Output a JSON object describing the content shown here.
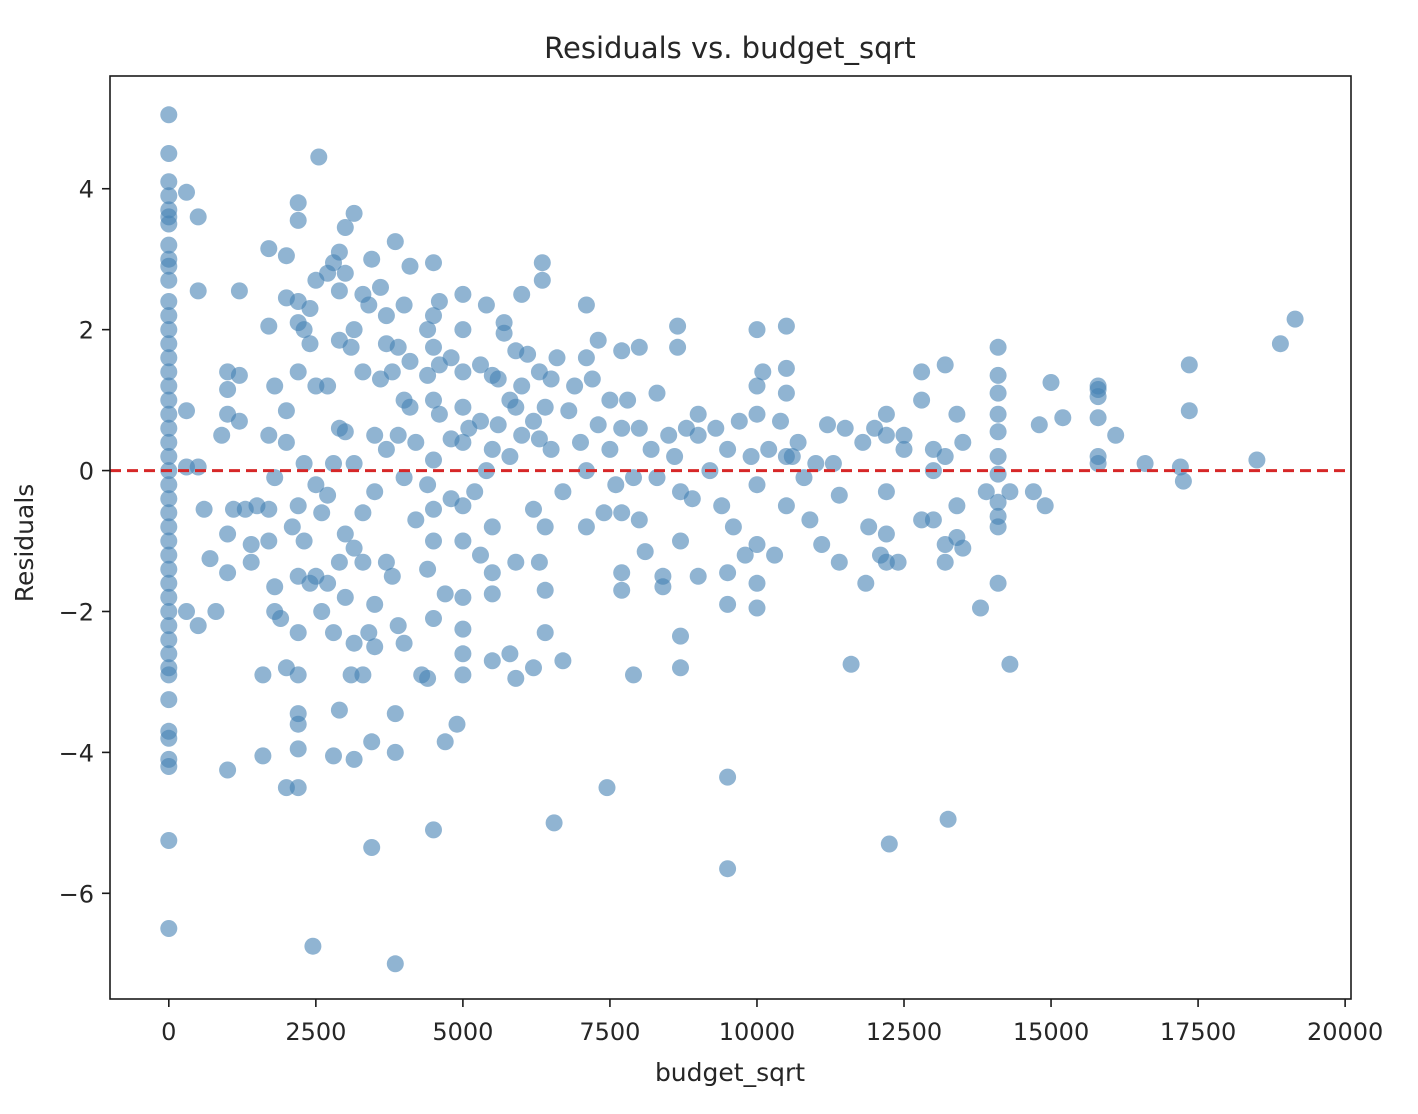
{
  "chart_data": {
    "type": "scatter",
    "title": "Residuals vs. budget_sqrt",
    "xlabel": "budget_sqrt",
    "ylabel": "Residuals",
    "xlim": [
      -1000,
      20100
    ],
    "ylim": [
      -7.5,
      5.6
    ],
    "xticks": [
      0,
      2500,
      5000,
      7500,
      10000,
      12500,
      15000,
      17500,
      20000
    ],
    "xtick_labels": [
      "0",
      "2500",
      "5000",
      "7500",
      "10000",
      "12500",
      "15000",
      "17500",
      "20000"
    ],
    "yticks": [
      4,
      2,
      0,
      -2,
      -4,
      -6
    ],
    "ytick_labels": [
      "4",
      "2",
      "0",
      "−2",
      "−4",
      "−6"
    ],
    "grid": false,
    "point_color": "#4682b4",
    "reference_line": {
      "y": 0,
      "style": "dashed",
      "color": "#d62728"
    },
    "points": [
      [
        0,
        5.05
      ],
      [
        0,
        4.5
      ],
      [
        0,
        4.1
      ],
      [
        0,
        3.9
      ],
      [
        0,
        3.7
      ],
      [
        0,
        3.6
      ],
      [
        0,
        3.5
      ],
      [
        0,
        3.2
      ],
      [
        0,
        3.0
      ],
      [
        0,
        2.9
      ],
      [
        0,
        2.7
      ],
      [
        0,
        2.4
      ],
      [
        0,
        2.2
      ],
      [
        0,
        2.0
      ],
      [
        0,
        1.8
      ],
      [
        0,
        1.6
      ],
      [
        0,
        1.4
      ],
      [
        0,
        1.2
      ],
      [
        0,
        1.0
      ],
      [
        0,
        0.8
      ],
      [
        0,
        0.6
      ],
      [
        0,
        0.4
      ],
      [
        0,
        0.2
      ],
      [
        0,
        0.0
      ],
      [
        0,
        -0.2
      ],
      [
        0,
        -0.4
      ],
      [
        0,
        -0.6
      ],
      [
        0,
        -0.8
      ],
      [
        0,
        -1.0
      ],
      [
        0,
        -1.2
      ],
      [
        0,
        -1.4
      ],
      [
        0,
        -1.6
      ],
      [
        0,
        -1.8
      ],
      [
        0,
        -2.0
      ],
      [
        0,
        -2.2
      ],
      [
        0,
        -2.4
      ],
      [
        0,
        -2.6
      ],
      [
        0,
        -2.8
      ],
      [
        0,
        -2.9
      ],
      [
        0,
        -3.25
      ],
      [
        0,
        -3.7
      ],
      [
        0,
        -3.8
      ],
      [
        0,
        -4.1
      ],
      [
        0,
        -4.2
      ],
      [
        0,
        -5.25
      ],
      [
        0,
        -6.5
      ],
      [
        300,
        3.95
      ],
      [
        500,
        3.6
      ],
      [
        500,
        2.55
      ],
      [
        300,
        0.85
      ],
      [
        300,
        0.05
      ],
      [
        500,
        0.05
      ],
      [
        300,
        -2.0
      ],
      [
        500,
        -2.2
      ],
      [
        800,
        -2.0
      ],
      [
        700,
        -1.25
      ],
      [
        600,
        -0.55
      ],
      [
        900,
        0.5
      ],
      [
        1000,
        1.4
      ],
      [
        1000,
        1.15
      ],
      [
        1000,
        0.8
      ],
      [
        1000,
        -0.9
      ],
      [
        1000,
        -1.45
      ],
      [
        1000,
        -4.25
      ],
      [
        1100,
        -0.55
      ],
      [
        1200,
        2.55
      ],
      [
        1200,
        1.35
      ],
      [
        1200,
        0.7
      ],
      [
        1300,
        -0.55
      ],
      [
        1400,
        -1.05
      ],
      [
        1400,
        -1.3
      ],
      [
        1500,
        -0.5
      ],
      [
        1600,
        -2.9
      ],
      [
        1600,
        -4.05
      ],
      [
        1700,
        3.15
      ],
      [
        1700,
        2.05
      ],
      [
        1700,
        0.5
      ],
      [
        1700,
        -0.55
      ],
      [
        1700,
        -1.0
      ],
      [
        1800,
        -0.1
      ],
      [
        1800,
        1.2
      ],
      [
        1800,
        -1.65
      ],
      [
        1800,
        -2.0
      ],
      [
        1900,
        -2.1
      ],
      [
        2000,
        3.05
      ],
      [
        2000,
        2.45
      ],
      [
        2000,
        0.85
      ],
      [
        2000,
        0.4
      ],
      [
        2000,
        -2.8
      ],
      [
        2000,
        -4.5
      ],
      [
        2100,
        -0.8
      ],
      [
        2200,
        3.8
      ],
      [
        2200,
        3.55
      ],
      [
        2200,
        2.4
      ],
      [
        2200,
        2.1
      ],
      [
        2200,
        1.4
      ],
      [
        2200,
        -0.5
      ],
      [
        2200,
        -1.5
      ],
      [
        2200,
        -2.3
      ],
      [
        2200,
        -2.9
      ],
      [
        2200,
        -3.45
      ],
      [
        2200,
        -3.6
      ],
      [
        2200,
        -3.95
      ],
      [
        2200,
        -4.5
      ],
      [
        2300,
        2.0
      ],
      [
        2300,
        0.1
      ],
      [
        2300,
        -1.0
      ],
      [
        2400,
        2.3
      ],
      [
        2400,
        1.8
      ],
      [
        2400,
        -1.6
      ],
      [
        2450,
        -6.75
      ],
      [
        2500,
        2.7
      ],
      [
        2500,
        1.2
      ],
      [
        2500,
        -0.2
      ],
      [
        2500,
        -1.5
      ],
      [
        2550,
        4.45
      ],
      [
        2600,
        -0.6
      ],
      [
        2600,
        -2.0
      ],
      [
        2700,
        2.8
      ],
      [
        2700,
        1.2
      ],
      [
        2700,
        -0.35
      ],
      [
        2700,
        -1.6
      ],
      [
        2800,
        2.95
      ],
      [
        2800,
        0.1
      ],
      [
        2800,
        -2.3
      ],
      [
        2800,
        -4.05
      ],
      [
        2900,
        3.1
      ],
      [
        2900,
        2.55
      ],
      [
        2900,
        1.85
      ],
      [
        2900,
        0.6
      ],
      [
        2900,
        -1.3
      ],
      [
        2900,
        -3.4
      ],
      [
        3000,
        3.45
      ],
      [
        3000,
        2.8
      ],
      [
        3000,
        0.55
      ],
      [
        3000,
        -0.9
      ],
      [
        3000,
        -1.8
      ],
      [
        3100,
        1.75
      ],
      [
        3100,
        -2.9
      ],
      [
        3150,
        3.65
      ],
      [
        3150,
        2.0
      ],
      [
        3150,
        0.1
      ],
      [
        3150,
        -1.1
      ],
      [
        3150,
        -2.45
      ],
      [
        3150,
        -4.1
      ],
      [
        3300,
        2.5
      ],
      [
        3300,
        1.4
      ],
      [
        3300,
        -0.6
      ],
      [
        3300,
        -1.3
      ],
      [
        3300,
        -2.9
      ],
      [
        3400,
        2.35
      ],
      [
        3400,
        -2.3
      ],
      [
        3450,
        3.0
      ],
      [
        3450,
        -3.85
      ],
      [
        3450,
        -5.35
      ],
      [
        3500,
        0.5
      ],
      [
        3500,
        -0.3
      ],
      [
        3500,
        -1.9
      ],
      [
        3500,
        -2.5
      ],
      [
        3600,
        2.6
      ],
      [
        3600,
        1.3
      ],
      [
        3700,
        2.2
      ],
      [
        3700,
        1.8
      ],
      [
        3700,
        0.3
      ],
      [
        3700,
        -1.3
      ],
      [
        3800,
        1.4
      ],
      [
        3800,
        -1.5
      ],
      [
        3850,
        3.25
      ],
      [
        3850,
        -3.45
      ],
      [
        3850,
        -4.0
      ],
      [
        3850,
        -7.0
      ],
      [
        3900,
        1.75
      ],
      [
        3900,
        0.5
      ],
      [
        3900,
        -2.2
      ],
      [
        4000,
        2.35
      ],
      [
        4000,
        1.0
      ],
      [
        4000,
        -0.1
      ],
      [
        4000,
        -2.45
      ],
      [
        4100,
        2.9
      ],
      [
        4100,
        1.55
      ],
      [
        4100,
        0.9
      ],
      [
        4200,
        0.4
      ],
      [
        4200,
        -0.7
      ],
      [
        4300,
        -2.9
      ],
      [
        4400,
        2.0
      ],
      [
        4400,
        1.35
      ],
      [
        4400,
        -0.2
      ],
      [
        4400,
        -1.4
      ],
      [
        4400,
        -2.95
      ],
      [
        4500,
        2.95
      ],
      [
        4500,
        2.2
      ],
      [
        4500,
        1.75
      ],
      [
        4500,
        1.0
      ],
      [
        4500,
        0.15
      ],
      [
        4500,
        -0.55
      ],
      [
        4500,
        -1.0
      ],
      [
        4500,
        -2.1
      ],
      [
        4500,
        -5.1
      ],
      [
        4600,
        2.4
      ],
      [
        4600,
        1.5
      ],
      [
        4600,
        0.8
      ],
      [
        4700,
        -1.75
      ],
      [
        4700,
        -3.85
      ],
      [
        4800,
        1.6
      ],
      [
        4800,
        0.45
      ],
      [
        4800,
        -0.4
      ],
      [
        4900,
        -3.6
      ],
      [
        5000,
        2.5
      ],
      [
        5000,
        2.0
      ],
      [
        5000,
        1.4
      ],
      [
        5000,
        0.9
      ],
      [
        5000,
        0.4
      ],
      [
        5000,
        -0.5
      ],
      [
        5000,
        -1.0
      ],
      [
        5000,
        -1.8
      ],
      [
        5000,
        -2.25
      ],
      [
        5000,
        -2.6
      ],
      [
        5000,
        -2.9
      ],
      [
        5100,
        0.6
      ],
      [
        5200,
        -0.3
      ],
      [
        5300,
        1.5
      ],
      [
        5300,
        0.7
      ],
      [
        5300,
        -1.2
      ],
      [
        5400,
        2.35
      ],
      [
        5400,
        0.0
      ],
      [
        5500,
        1.35
      ],
      [
        5500,
        0.3
      ],
      [
        5500,
        -0.8
      ],
      [
        5500,
        -1.45
      ],
      [
        5500,
        -1.75
      ],
      [
        5500,
        -2.7
      ],
      [
        5600,
        1.3
      ],
      [
        5600,
        0.65
      ],
      [
        5700,
        2.1
      ],
      [
        5700,
        1.95
      ],
      [
        5800,
        1.0
      ],
      [
        5800,
        0.2
      ],
      [
        5800,
        -2.6
      ],
      [
        5900,
        1.7
      ],
      [
        5900,
        0.9
      ],
      [
        5900,
        -1.3
      ],
      [
        5900,
        -2.95
      ],
      [
        6000,
        2.5
      ],
      [
        6000,
        1.2
      ],
      [
        6000,
        0.5
      ],
      [
        6100,
        1.65
      ],
      [
        6200,
        0.7
      ],
      [
        6200,
        -0.55
      ],
      [
        6200,
        -2.8
      ],
      [
        6300,
        1.4
      ],
      [
        6300,
        0.45
      ],
      [
        6300,
        -1.3
      ],
      [
        6350,
        2.95
      ],
      [
        6350,
        2.7
      ],
      [
        6400,
        0.9
      ],
      [
        6400,
        -0.8
      ],
      [
        6400,
        -1.7
      ],
      [
        6400,
        -2.3
      ],
      [
        6500,
        1.3
      ],
      [
        6500,
        0.3
      ],
      [
        6550,
        -5.0
      ],
      [
        6600,
        1.6
      ],
      [
        6700,
        -2.7
      ],
      [
        6700,
        -0.3
      ],
      [
        6800,
        0.85
      ],
      [
        6900,
        1.2
      ],
      [
        7000,
        0.4
      ],
      [
        7100,
        2.35
      ],
      [
        7100,
        1.6
      ],
      [
        7100,
        0.0
      ],
      [
        7100,
        -0.8
      ],
      [
        7200,
        1.3
      ],
      [
        7300,
        1.85
      ],
      [
        7300,
        0.65
      ],
      [
        7400,
        -0.6
      ],
      [
        7450,
        -4.5
      ],
      [
        7500,
        1.0
      ],
      [
        7500,
        0.3
      ],
      [
        7600,
        -0.2
      ],
      [
        7700,
        1.7
      ],
      [
        7700,
        0.6
      ],
      [
        7700,
        -0.6
      ],
      [
        7700,
        -1.45
      ],
      [
        7700,
        -1.7
      ],
      [
        7800,
        1.0
      ],
      [
        7900,
        -2.9
      ],
      [
        7900,
        -0.1
      ],
      [
        8000,
        1.75
      ],
      [
        8000,
        0.6
      ],
      [
        8000,
        -0.7
      ],
      [
        8100,
        -1.15
      ],
      [
        8200,
        0.3
      ],
      [
        8300,
        1.1
      ],
      [
        8300,
        -0.1
      ],
      [
        8400,
        -1.5
      ],
      [
        8400,
        -1.65
      ],
      [
        8500,
        0.5
      ],
      [
        8600,
        0.2
      ],
      [
        8650,
        2.05
      ],
      [
        8650,
        1.75
      ],
      [
        8700,
        -0.3
      ],
      [
        8700,
        -1.0
      ],
      [
        8700,
        -2.35
      ],
      [
        8700,
        -2.8
      ],
      [
        8800,
        0.6
      ],
      [
        8900,
        -0.4
      ],
      [
        9000,
        0.8
      ],
      [
        9000,
        0.5
      ],
      [
        9000,
        -1.5
      ],
      [
        9200,
        0.0
      ],
      [
        9300,
        0.6
      ],
      [
        9400,
        -0.5
      ],
      [
        9500,
        -1.45
      ],
      [
        9500,
        -1.9
      ],
      [
        9500,
        -4.35
      ],
      [
        9500,
        -5.65
      ],
      [
        9500,
        0.3
      ],
      [
        9600,
        -0.8
      ],
      [
        9700,
        0.7
      ],
      [
        9800,
        -1.2
      ],
      [
        9900,
        0.2
      ],
      [
        10000,
        2.0
      ],
      [
        10000,
        1.2
      ],
      [
        10000,
        0.8
      ],
      [
        10000,
        -0.2
      ],
      [
        10000,
        -1.05
      ],
      [
        10000,
        -1.6
      ],
      [
        10000,
        -1.95
      ],
      [
        10100,
        1.4
      ],
      [
        10200,
        0.3
      ],
      [
        10300,
        -1.2
      ],
      [
        10400,
        0.7
      ],
      [
        10500,
        2.05
      ],
      [
        10500,
        1.45
      ],
      [
        10500,
        1.1
      ],
      [
        10500,
        0.2
      ],
      [
        10500,
        -0.5
      ],
      [
        10600,
        0.2
      ],
      [
        10700,
        0.4
      ],
      [
        10800,
        -0.1
      ],
      [
        10900,
        -0.7
      ],
      [
        11000,
        0.1
      ],
      [
        11100,
        -1.05
      ],
      [
        11200,
        0.65
      ],
      [
        11300,
        0.1
      ],
      [
        11400,
        -1.3
      ],
      [
        11400,
        -0.35
      ],
      [
        11500,
        0.6
      ],
      [
        11600,
        -2.75
      ],
      [
        11800,
        0.4
      ],
      [
        11850,
        -1.6
      ],
      [
        11900,
        -0.8
      ],
      [
        12000,
        0.6
      ],
      [
        12100,
        -1.2
      ],
      [
        12200,
        0.8
      ],
      [
        12200,
        0.5
      ],
      [
        12200,
        -0.3
      ],
      [
        12200,
        -0.9
      ],
      [
        12200,
        -1.3
      ],
      [
        12250,
        -5.3
      ],
      [
        12400,
        -1.3
      ],
      [
        12500,
        0.5
      ],
      [
        12500,
        0.3
      ],
      [
        12800,
        1.4
      ],
      [
        12800,
        1.0
      ],
      [
        12800,
        -0.7
      ],
      [
        13000,
        0.3
      ],
      [
        13000,
        0.0
      ],
      [
        13000,
        -0.7
      ],
      [
        13200,
        1.5
      ],
      [
        13200,
        0.2
      ],
      [
        13200,
        -1.05
      ],
      [
        13200,
        -1.3
      ],
      [
        13250,
        -4.95
      ],
      [
        13400,
        0.8
      ],
      [
        13400,
        -0.5
      ],
      [
        13400,
        -0.95
      ],
      [
        13500,
        0.4
      ],
      [
        13500,
        -1.1
      ],
      [
        13800,
        -1.95
      ],
      [
        13900,
        -0.3
      ],
      [
        14100,
        1.75
      ],
      [
        14100,
        1.35
      ],
      [
        14100,
        1.1
      ],
      [
        14100,
        0.8
      ],
      [
        14100,
        0.55
      ],
      [
        14100,
        0.2
      ],
      [
        14100,
        -0.05
      ],
      [
        14100,
        -0.45
      ],
      [
        14100,
        -0.65
      ],
      [
        14100,
        -0.8
      ],
      [
        14100,
        -1.6
      ],
      [
        14300,
        -0.3
      ],
      [
        14300,
        -2.75
      ],
      [
        14700,
        -0.3
      ],
      [
        14800,
        0.65
      ],
      [
        14900,
        -0.5
      ],
      [
        15000,
        1.25
      ],
      [
        15200,
        0.75
      ],
      [
        15800,
        1.2
      ],
      [
        15800,
        1.15
      ],
      [
        15800,
        1.05
      ],
      [
        15800,
        0.75
      ],
      [
        15800,
        0.2
      ],
      [
        15800,
        0.1
      ],
      [
        16100,
        0.5
      ],
      [
        16600,
        0.1
      ],
      [
        17200,
        0.05
      ],
      [
        17250,
        -0.15
      ],
      [
        17350,
        1.5
      ],
      [
        17350,
        0.85
      ],
      [
        18500,
        0.15
      ],
      [
        18900,
        1.8
      ],
      [
        19150,
        2.15
      ]
    ]
  }
}
